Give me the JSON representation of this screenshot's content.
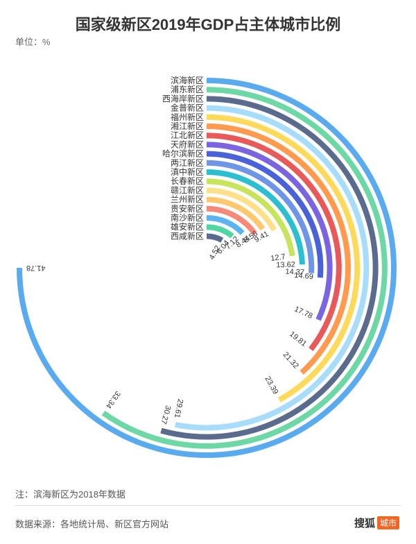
{
  "title": "国家级新区2019年GDP占主体城市比例",
  "unit_label": "单位：%",
  "note": "注：滨海新区为2018年数据",
  "source": "数据来源：各地统计局、新区官方网站",
  "brand": {
    "name": "搜狐",
    "tag": "城市"
  },
  "chart_data": {
    "type": "radial-bar",
    "unit": "%",
    "max_value": 41.78,
    "categories": [
      "滨海新区",
      "浦东新区",
      "西海岸新区",
      "金普新区",
      "福州新区",
      "湘江新区",
      "江北新区",
      "天府新区",
      "哈尔滨新区",
      "两江新区",
      "滇中新区",
      "长春新区",
      "赣江新区",
      "兰州新区",
      "贵安新区",
      "南沙新区",
      "雄安新区",
      "西咸新区"
    ],
    "values": [
      41.78,
      33.34,
      30.27,
      29.61,
      23.39,
      21.32,
      19.81,
      17.78,
      14.69,
      14.37,
      13.62,
      12.7,
      9.41,
      8.56,
      8.44,
      7.12,
      6.04,
      4.52
    ],
    "colors": [
      "#5aaaf0",
      "#6dd8a6",
      "#5a6b8e",
      "#a8dcfb",
      "#ffd95a",
      "#ff9a4e",
      "#e85a5a",
      "#7a64e0",
      "#4a62d8",
      "#6f96e6",
      "#2cbfcf",
      "#c7e45c",
      "#ffe08a",
      "#ffc86e",
      "#f58a7a",
      "#5ab4f0",
      "#4fd6a2",
      "#5a6b8e"
    ]
  }
}
